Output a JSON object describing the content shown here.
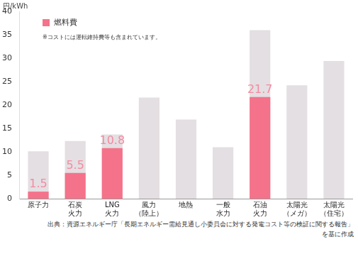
{
  "chart_data": {
    "type": "bar",
    "y_label": "円/kWh",
    "annotation": "※コストには運転維持費等も含まれています。",
    "source": [
      "出典：資源エネルギー庁「長期エネルギー需給見通し小委員会に対する発電コスト等の検証に関する報告」",
      "を基に作成"
    ],
    "categories": [
      "原子力",
      "石炭\n火力",
      "LNG\n火力",
      "風力\n（陸上）",
      "地熱",
      "一般\n水力",
      "石油\n火力",
      "太陽光\n（メガ）",
      "太陽光\n（住宅）"
    ],
    "series": [
      {
        "name": "燃料費",
        "color": "#f4728a",
        "values": [
          1.5,
          5.5,
          10.8,
          null,
          null,
          null,
          21.7,
          null,
          null
        ],
        "data_labels": true
      },
      {
        "color": "#e4dfe2",
        "values": [
          10.1,
          12.3,
          13.7,
          21.6,
          16.9,
          11.0,
          36.0,
          24.2,
          29.4
        ]
      }
    ],
    "ylim": [
      0,
      40
    ],
    "yticks": [
      0,
      5,
      10,
      15,
      20,
      25,
      30,
      35,
      40
    ],
    "grid": false,
    "legend": "upper left"
  }
}
